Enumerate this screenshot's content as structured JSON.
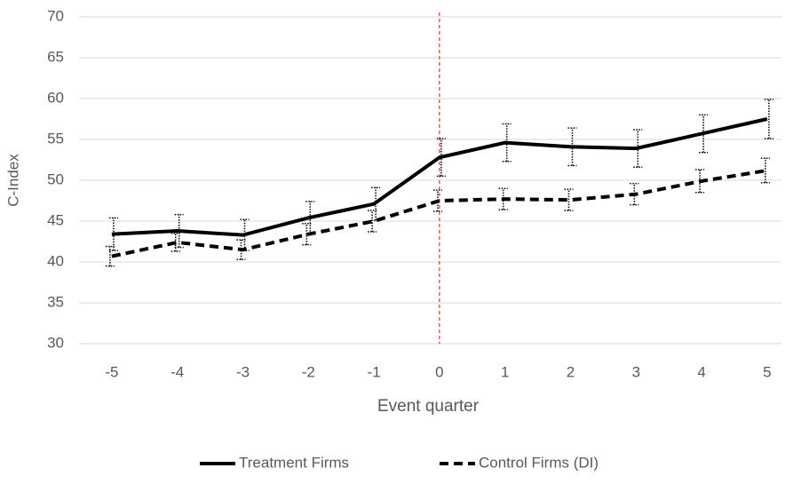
{
  "chart_data": {
    "type": "line",
    "x_label": "Event quarter",
    "y_label": "C-Index",
    "categories": [
      "-5",
      "-4",
      "-3",
      "-2",
      "-1",
      "0",
      "1",
      "2",
      "3",
      "4",
      "5"
    ],
    "series": [
      {
        "name": "Treatment Firms",
        "color": "#000000",
        "dash": "solid",
        "values": [
          43.4,
          43.8,
          43.3,
          45.4,
          47.1,
          52.8,
          54.6,
          54.1,
          53.9,
          55.7,
          57.5
        ],
        "errors": [
          2.0,
          2.0,
          1.9,
          2.0,
          2.0,
          2.3,
          2.3,
          2.3,
          2.3,
          2.3,
          2.4
        ]
      },
      {
        "name": "Control Firms (DI)",
        "color": "#000000",
        "dash": "dashed",
        "values": [
          40.7,
          42.4,
          41.5,
          43.4,
          45.0,
          47.5,
          47.7,
          47.6,
          48.3,
          49.9,
          51.2
        ],
        "errors": [
          1.2,
          1.1,
          1.2,
          1.3,
          1.3,
          1.3,
          1.3,
          1.3,
          1.3,
          1.4,
          1.5
        ]
      }
    ],
    "ylim": [
      30,
      70
    ],
    "yticks": [
      30,
      35,
      40,
      45,
      50,
      55,
      60,
      65,
      70
    ],
    "grid": true,
    "vline_at": "0",
    "vline_color": "#ff0000",
    "legend": "bottom"
  }
}
